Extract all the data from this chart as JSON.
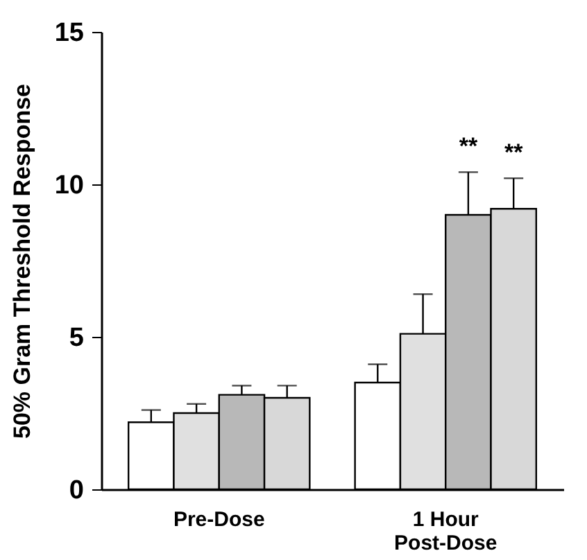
{
  "chart_data": {
    "type": "bar",
    "ylabel": "50% Gram Threshold Response",
    "categories": [
      "Pre-Dose",
      "1 Hour\nPost-Dose"
    ],
    "series": [
      {
        "color": "#ffffff",
        "values": [
          2.2,
          3.5
        ],
        "errors": [
          [
            2.2,
            2.6
          ],
          [
            3.5,
            4.1
          ]
        ]
      },
      {
        "color": "#e0e0e0",
        "values": [
          2.5,
          5.1
        ],
        "errors": [
          [
            2.5,
            2.8
          ],
          [
            5.1,
            6.4
          ]
        ]
      },
      {
        "color": "#b8b8b8",
        "values": [
          3.1,
          9.0
        ],
        "errors": [
          [
            3.1,
            3.4
          ],
          [
            9.0,
            10.4
          ]
        ]
      },
      {
        "color": "#d8d8d8",
        "values": [
          3.0,
          9.2
        ],
        "errors": [
          [
            3.0,
            3.4
          ],
          [
            9.2,
            10.2
          ]
        ]
      }
    ],
    "ylim": [
      0,
      15
    ],
    "yticks": [
      0,
      5,
      10,
      15
    ],
    "grid": false,
    "legend": false,
    "annotations": [
      "**",
      "**"
    ]
  }
}
